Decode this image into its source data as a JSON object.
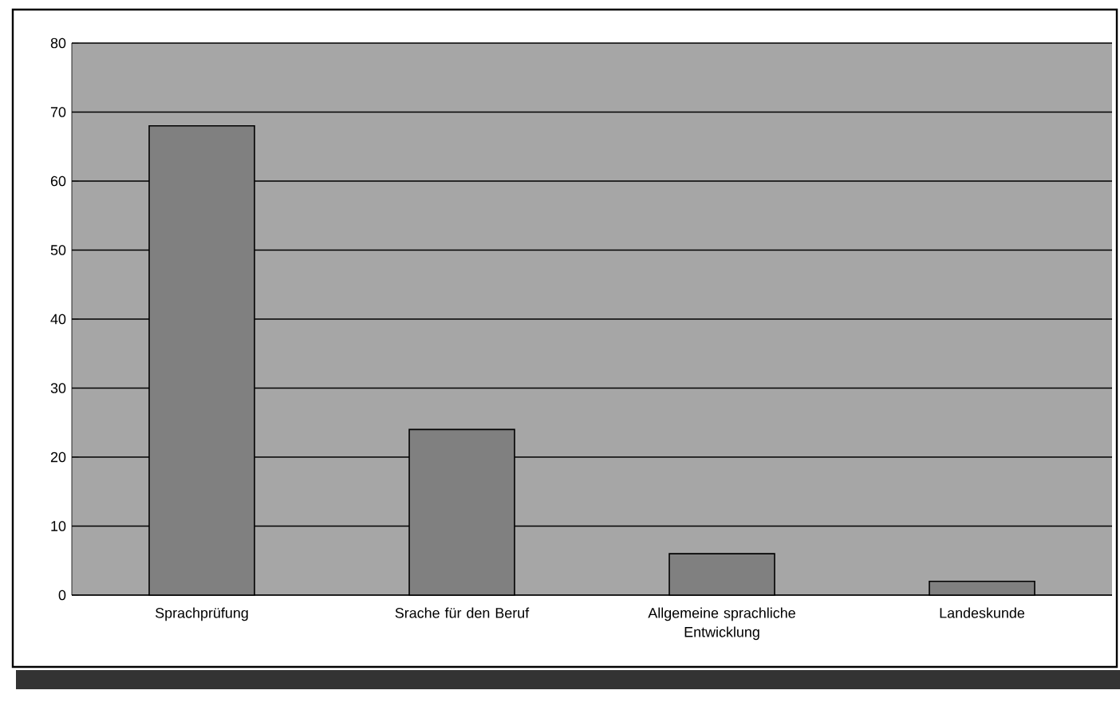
{
  "chart_data": {
    "type": "bar",
    "categories": [
      "Sprachprüfung",
      "Srache für den Beruf",
      "Allgemeine sprachliche Entwicklung",
      "Landeskunde"
    ],
    "values": [
      68,
      24,
      6,
      2
    ],
    "color": "#808080",
    "ylim": [
      0,
      80
    ],
    "yticks": [
      0,
      10,
      20,
      30,
      40,
      50,
      60,
      70,
      80
    ],
    "grid": "y"
  }
}
